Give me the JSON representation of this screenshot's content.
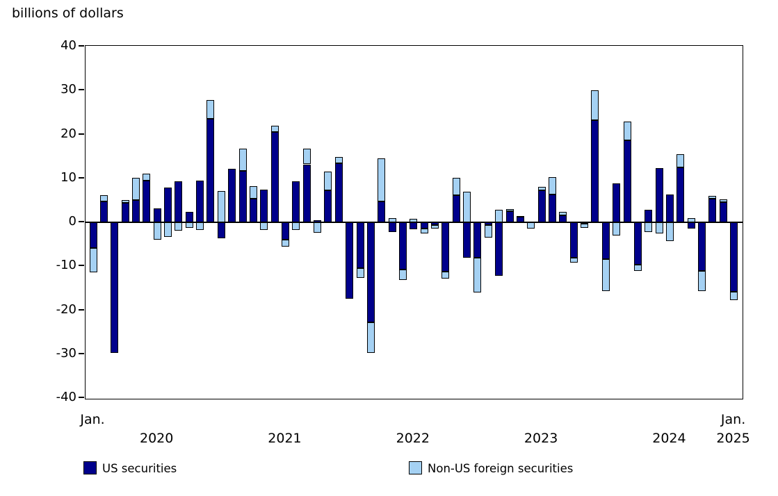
{
  "title": "billions of dollars",
  "colors": {
    "us": "#00008b",
    "non_us": "#a5d1f3",
    "axis": "#000000",
    "background": "#ffffff"
  },
  "legend": [
    {
      "label": "US securities",
      "color_key": "us"
    },
    {
      "label": "Non-US foreign securities",
      "color_key": "non_us"
    }
  ],
  "y_axis": {
    "min": -40,
    "max": 40,
    "tick_step": 10,
    "ticks": [
      40,
      30,
      20,
      10,
      0,
      -10,
      -20,
      -30,
      -40
    ]
  },
  "x_axis": {
    "labels": [
      {
        "text": "Jan.",
        "month_index": 0,
        "line": 1
      },
      {
        "text": "2020",
        "month_index": 6,
        "line": 2
      },
      {
        "text": "2021",
        "month_index": 18,
        "line": 2
      },
      {
        "text": "2022",
        "month_index": 30,
        "line": 2
      },
      {
        "text": "2023",
        "month_index": 42,
        "line": 2
      },
      {
        "text": "2024",
        "month_index": 54,
        "line": 2
      },
      {
        "text": "Jan.",
        "month_index": 60,
        "line": 1
      },
      {
        "text": "2025",
        "month_index": 60,
        "line": 2
      }
    ]
  },
  "chart_data": {
    "type": "bar",
    "stacked": true,
    "title": "billions of dollars",
    "ylabel": "billions of dollars",
    "ylim": [
      -40,
      40
    ],
    "grid": false,
    "legend_position": "bottom",
    "categories": [
      "Jan. 2020",
      "Feb. 2020",
      "Mar. 2020",
      "Apr. 2020",
      "May 2020",
      "Jun. 2020",
      "Jul. 2020",
      "Aug. 2020",
      "Sep. 2020",
      "Oct. 2020",
      "Nov. 2020",
      "Dec. 2020",
      "Jan. 2021",
      "Feb. 2021",
      "Mar. 2021",
      "Apr. 2021",
      "May 2021",
      "Jun. 2021",
      "Jul. 2021",
      "Aug. 2021",
      "Sep. 2021",
      "Oct. 2021",
      "Nov. 2021",
      "Dec. 2021",
      "Jan. 2022",
      "Feb. 2022",
      "Mar. 2022",
      "Apr. 2022",
      "May 2022",
      "Jun. 2022",
      "Jul. 2022",
      "Aug. 2022",
      "Sep. 2022",
      "Oct. 2022",
      "Nov. 2022",
      "Dec. 2022",
      "Jan. 2023",
      "Feb. 2023",
      "Mar. 2023",
      "Apr. 2023",
      "May 2023",
      "Jun. 2023",
      "Jul. 2023",
      "Aug. 2023",
      "Sep. 2023",
      "Oct. 2023",
      "Nov. 2023",
      "Dec. 2023",
      "Jan. 2024",
      "Feb. 2024",
      "Mar. 2024",
      "Apr. 2024",
      "May 2024",
      "Jun. 2024",
      "Jul. 2024",
      "Aug. 2024",
      "Sep. 2024",
      "Oct. 2024",
      "Nov. 2024",
      "Dec. 2024",
      "Jan. 2025"
    ],
    "series": [
      {
        "name": "US securities",
        "color_key": "us",
        "values": [
          -5.8,
          4.7,
          -29.8,
          4.5,
          5.0,
          9.5,
          3.2,
          7.9,
          9.3,
          2.4,
          9.5,
          23.5,
          -3.6,
          12.2,
          11.7,
          5.3,
          7.5,
          20.6,
          -3.9,
          9.3,
          13.2,
          0.5,
          7.3,
          13.4,
          -17.4,
          -10.4,
          -22.7,
          4.8,
          -2.2,
          -10.8,
          -1.6,
          -1.4,
          -0.7,
          -11.3,
          6.1,
          -8.1,
          -8.0,
          -0.6,
          -12.1,
          2.5,
          1.3,
          0.0,
          7.2,
          6.4,
          1.6,
          -8.0,
          -0.3,
          23.3,
          -8.4,
          8.9,
          18.6,
          -9.7,
          2.8,
          12.4,
          6.3,
          12.5,
          -1.5,
          -11.1,
          5.4,
          4.6,
          -15.8
        ]
      },
      {
        "name": "Non-US foreign securities",
        "color_key": "non_us",
        "values": [
          -5.6,
          1.4,
          0.0,
          0.5,
          5.1,
          1.6,
          -4.0,
          -3.3,
          -1.9,
          -1.2,
          -1.7,
          4.3,
          7.1,
          0.0,
          5.1,
          2.9,
          -1.8,
          1.3,
          -1.6,
          -1.8,
          3.5,
          -2.4,
          4.2,
          1.5,
          0.0,
          -2.3,
          -7.0,
          9.7,
          1.0,
          -2.4,
          0.8,
          -1.2,
          -0.7,
          -1.5,
          4.0,
          6.9,
          -7.9,
          -2.9,
          2.8,
          0.5,
          0.2,
          -1.5,
          0.8,
          3.9,
          0.8,
          -1.2,
          -1.0,
          6.7,
          -7.3,
          -3.0,
          4.4,
          -1.4,
          -2.2,
          -2.6,
          -4.3,
          3.0,
          0.9,
          -4.6,
          0.6,
          0.6,
          -1.9
        ]
      }
    ]
  }
}
